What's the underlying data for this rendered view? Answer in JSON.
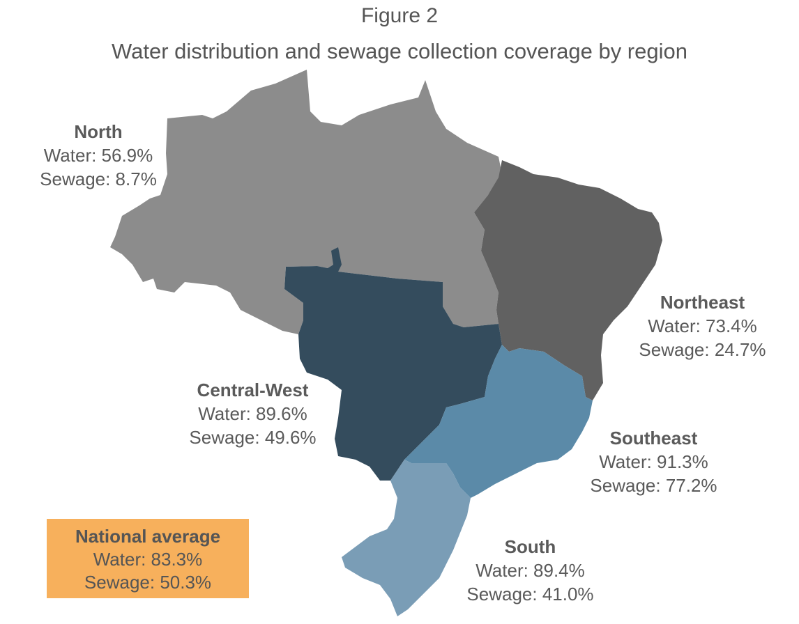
{
  "figure": {
    "label": "Figure 2",
    "title": "Water distribution and sewage collection coverage by region"
  },
  "regions": {
    "north": {
      "name": "North",
      "water": "Water: 56.9%",
      "sewage": "Sewage: 8.7%",
      "water_pct": 56.9,
      "sewage_pct": 8.7,
      "color": "#8c8c8c"
    },
    "northeast": {
      "name": "Northeast",
      "water": "Water: 73.4%",
      "sewage": "Sewage: 24.7%",
      "water_pct": 73.4,
      "sewage_pct": 24.7,
      "color": "#616161"
    },
    "central_west": {
      "name": "Central-West",
      "water": "Water: 89.6%",
      "sewage": "Sewage: 49.6%",
      "water_pct": 89.6,
      "sewage_pct": 49.6,
      "color": "#344c5d"
    },
    "southeast": {
      "name": "Southeast",
      "water": "Water: 91.3%",
      "sewage": "Sewage: 77.2%",
      "water_pct": 91.3,
      "sewage_pct": 77.2,
      "color": "#5b8aa8"
    },
    "south": {
      "name": "South",
      "water": "Water: 89.4%",
      "sewage": "Sewage: 41.0%",
      "water_pct": 89.4,
      "sewage_pct": 41.0,
      "color": "#7a9db6"
    }
  },
  "national": {
    "name": "National average",
    "water": "Water: 83.3%",
    "sewage": "Sewage: 50.3%",
    "water_pct": 83.3,
    "sewage_pct": 50.3,
    "color": "#f7b05c"
  }
}
